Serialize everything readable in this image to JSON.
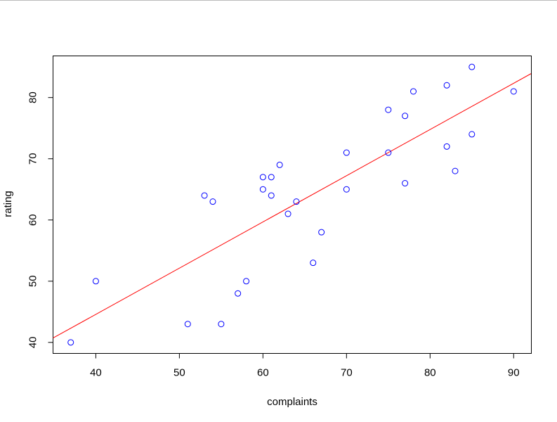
{
  "chart_data": {
    "type": "scatter",
    "x_label": "complaints",
    "y_label": "rating",
    "x": [
      51,
      64,
      70,
      63,
      78,
      55,
      67,
      75,
      82,
      61,
      53,
      60,
      62,
      83,
      77,
      90,
      85,
      60,
      70,
      58,
      40,
      61,
      66,
      37,
      54,
      77,
      75,
      57,
      85,
      82
    ],
    "values": [
      43,
      63,
      71,
      61,
      81,
      43,
      58,
      71,
      72,
      67,
      64,
      67,
      69,
      68,
      77,
      81,
      74,
      65,
      65,
      50,
      50,
      64,
      53,
      40,
      63,
      66,
      78,
      48,
      85,
      82
    ],
    "color": "#0000ff",
    "fit": {
      "intercept": 14.38,
      "slope": 0.755,
      "color": "#ff0000"
    },
    "xlim": [
      34.88,
      92.12
    ],
    "ylim": [
      38.2,
      86.8
    ],
    "xticks": [
      40,
      50,
      60,
      70,
      80,
      90
    ],
    "yticks": [
      40,
      50,
      60,
      70,
      80
    ]
  }
}
